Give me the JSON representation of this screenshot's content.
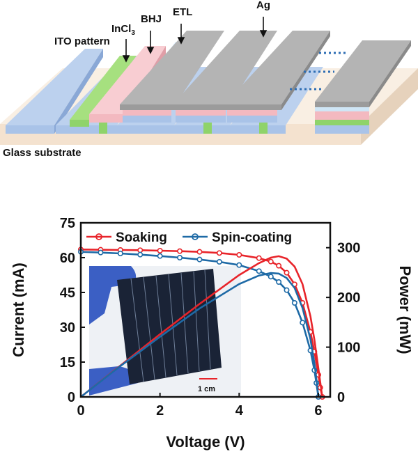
{
  "schematic": {
    "labels": {
      "ito": "ITO pattern",
      "incl3_base": "InCl",
      "incl3_sub": "3",
      "bhj": "BHJ",
      "etl": "ETL",
      "ag": "Ag",
      "glass": "Glass substrate"
    },
    "colors": {
      "ito": "#a9c3e8",
      "incl3": "#8fd36a",
      "bhj": "#f3b9c0",
      "etl": "#cfe6f6",
      "ag": "#9b9b9b",
      "glass": "#f4e2cf",
      "dots": "#2d6db3"
    }
  },
  "inset": {
    "scale_label": "1 cm"
  },
  "chart_data": {
    "type": "line",
    "xlabel": "Voltage (V)",
    "ylabel_left": "Current (mA)",
    "ylabel_right": "Power (mW)",
    "xlim": [
      0,
      6.3
    ],
    "xticks": [
      0,
      2,
      4,
      6
    ],
    "ylim_left": [
      0,
      75
    ],
    "yticks_left": [
      0,
      15,
      30,
      45,
      60,
      75
    ],
    "ylim_right": [
      0,
      350
    ],
    "yticks_right": [
      0,
      100,
      200,
      300
    ],
    "legend_position": "top",
    "series": [
      {
        "name": "Soaking",
        "color": "#e8242a",
        "axis": "left",
        "kind": "current",
        "x": [
          0,
          0.5,
          1.0,
          1.5,
          2.0,
          2.5,
          3.0,
          3.5,
          4.0,
          4.5,
          4.8,
          5.0,
          5.2,
          5.4,
          5.6,
          5.8,
          5.9,
          6.0,
          6.05,
          6.1
        ],
        "y": [
          63.5,
          63.4,
          63.3,
          63.2,
          63.0,
          62.8,
          62.5,
          62.0,
          61.2,
          59.8,
          58.3,
          56.5,
          53.5,
          48.5,
          40.5,
          28.0,
          19.5,
          9.5,
          4.0,
          0
        ]
      },
      {
        "name": "Spin-coating",
        "color": "#1e6aa6",
        "axis": "left",
        "kind": "current",
        "x": [
          0,
          0.5,
          1.0,
          1.5,
          2.0,
          2.5,
          3.0,
          3.5,
          4.0,
          4.5,
          4.8,
          5.0,
          5.2,
          5.4,
          5.6,
          5.8,
          5.9,
          5.95,
          6.0
        ],
        "y": [
          62.5,
          62.2,
          61.8,
          61.3,
          60.7,
          60.0,
          59.2,
          58.2,
          56.8,
          54.2,
          51.8,
          49.5,
          46.0,
          40.5,
          32.0,
          20.0,
          11.5,
          6.0,
          0
        ]
      },
      {
        "name": "Soaking",
        "color": "#e8242a",
        "axis": "right",
        "kind": "power",
        "x": [
          0,
          1,
          2,
          3,
          4,
          4.5,
          4.8,
          5.0,
          5.2,
          5.4,
          5.6,
          5.8,
          5.9,
          6.0,
          6.1
        ],
        "y": [
          0,
          63,
          126,
          187,
          245,
          269,
          280,
          283,
          278,
          262,
          227,
          162,
          115,
          57,
          0
        ]
      },
      {
        "name": "Spin-coating",
        "color": "#1e6aa6",
        "axis": "right",
        "kind": "power",
        "x": [
          0,
          1,
          2,
          3,
          4,
          4.5,
          4.8,
          5.0,
          5.2,
          5.4,
          5.6,
          5.8,
          5.9,
          5.95,
          6.0
        ],
        "y": [
          0,
          62,
          121,
          178,
          227,
          244,
          249,
          248,
          239,
          219,
          179,
          116,
          68,
          36,
          0
        ]
      }
    ],
    "legend": [
      {
        "label": "Soaking",
        "color": "#e8242a"
      },
      {
        "label": "Spin-coating",
        "color": "#1e6aa6"
      }
    ]
  }
}
